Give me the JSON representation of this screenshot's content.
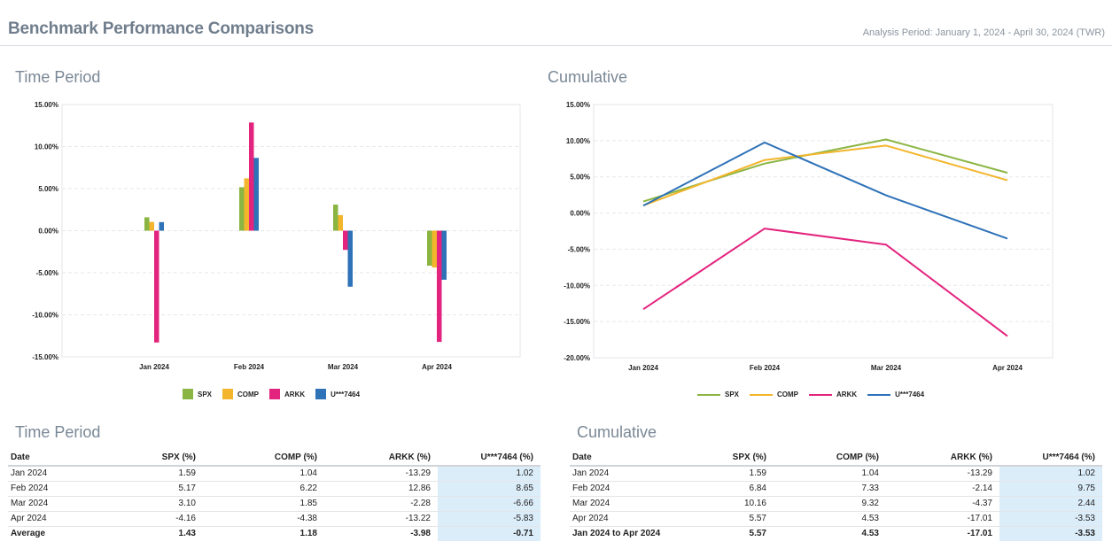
{
  "header": {
    "title": "Benchmark Performance Comparisons",
    "period": "Analysis Period: January 1, 2024 - April 30, 2024 (TWR)"
  },
  "sections": {
    "time_period_chart": "Time Period",
    "cumulative_chart": "Cumulative",
    "time_period_table": "Time Period",
    "cumulative_table": "Cumulative"
  },
  "colors": {
    "SPX": "#8bb543",
    "COMP": "#f2b52b",
    "ARKK": "#e3247e",
    "U***7464": "#2e72b8"
  },
  "legend": [
    "SPX",
    "COMP",
    "ARKK",
    "U***7464"
  ],
  "chart_data": [
    {
      "type": "bar",
      "categories": [
        "Jan 2024",
        "Feb 2024",
        "Mar 2024",
        "Apr 2024"
      ],
      "series": [
        {
          "name": "SPX",
          "values": [
            1.59,
            5.17,
            3.1,
            -4.16
          ]
        },
        {
          "name": "COMP",
          "values": [
            1.04,
            6.22,
            1.85,
            -4.38
          ]
        },
        {
          "name": "ARKK",
          "values": [
            -13.29,
            12.86,
            -2.28,
            -13.22
          ]
        },
        {
          "name": "U***7464",
          "values": [
            1.02,
            8.65,
            -6.66,
            -5.83
          ]
        }
      ],
      "ylim": [
        -15,
        15
      ],
      "yticks": [
        "15.00%",
        "10.00%",
        "5.00%",
        "0.00%",
        "-5.00%",
        "-10.00%",
        "-15.00%"
      ],
      "ytick_values": [
        15,
        10,
        5,
        0,
        -5,
        -10,
        -15
      ],
      "grid": true,
      "legend_position": "bottom"
    },
    {
      "type": "line",
      "categories": [
        "Jan 2024",
        "Feb 2024",
        "Mar 2024",
        "Apr 2024"
      ],
      "series": [
        {
          "name": "SPX",
          "values": [
            1.59,
            6.84,
            10.16,
            5.57
          ]
        },
        {
          "name": "COMP",
          "values": [
            1.04,
            7.33,
            9.32,
            4.53
          ]
        },
        {
          "name": "ARKK",
          "values": [
            -13.29,
            -2.14,
            -4.37,
            -17.01
          ]
        },
        {
          "name": "U***7464",
          "values": [
            1.02,
            9.75,
            2.44,
            -3.53
          ]
        }
      ],
      "ylim": [
        -20,
        15
      ],
      "yticks": [
        "15.00%",
        "10.00%",
        "5.00%",
        "0.00%",
        "-5.00%",
        "-10.00%",
        "-15.00%",
        "-20.00%"
      ],
      "ytick_values": [
        15,
        10,
        5,
        0,
        -5,
        -10,
        -15,
        -20
      ],
      "grid": true,
      "legend_position": "bottom"
    }
  ],
  "time_period_table": {
    "headers": [
      "Date",
      "SPX (%)",
      "COMP (%)",
      "ARKK (%)",
      "U***7464 (%)"
    ],
    "rows": [
      [
        "Jan 2024",
        "1.59",
        "1.04",
        "-13.29",
        "1.02"
      ],
      [
        "Feb 2024",
        "5.17",
        "6.22",
        "12.86",
        "8.65"
      ],
      [
        "Mar 2024",
        "3.10",
        "1.85",
        "-2.28",
        "-6.66"
      ],
      [
        "Apr 2024",
        "-4.16",
        "-4.38",
        "-13.22",
        "-5.83"
      ]
    ],
    "summary": [
      "Average",
      "1.43",
      "1.18",
      "-3.98",
      "-0.71"
    ]
  },
  "cumulative_table": {
    "headers": [
      "Date",
      "SPX (%)",
      "COMP (%)",
      "ARKK (%)",
      "U***7464 (%)"
    ],
    "rows": [
      [
        "Jan 2024",
        "1.59",
        "1.04",
        "-13.29",
        "1.02"
      ],
      [
        "Feb 2024",
        "6.84",
        "7.33",
        "-2.14",
        "9.75"
      ],
      [
        "Mar 2024",
        "10.16",
        "9.32",
        "-4.37",
        "2.44"
      ],
      [
        "Apr 2024",
        "5.57",
        "4.53",
        "-17.01",
        "-3.53"
      ]
    ],
    "summary": [
      "Jan 2024 to Apr 2024",
      "5.57",
      "4.53",
      "-17.01",
      "-3.53"
    ]
  }
}
